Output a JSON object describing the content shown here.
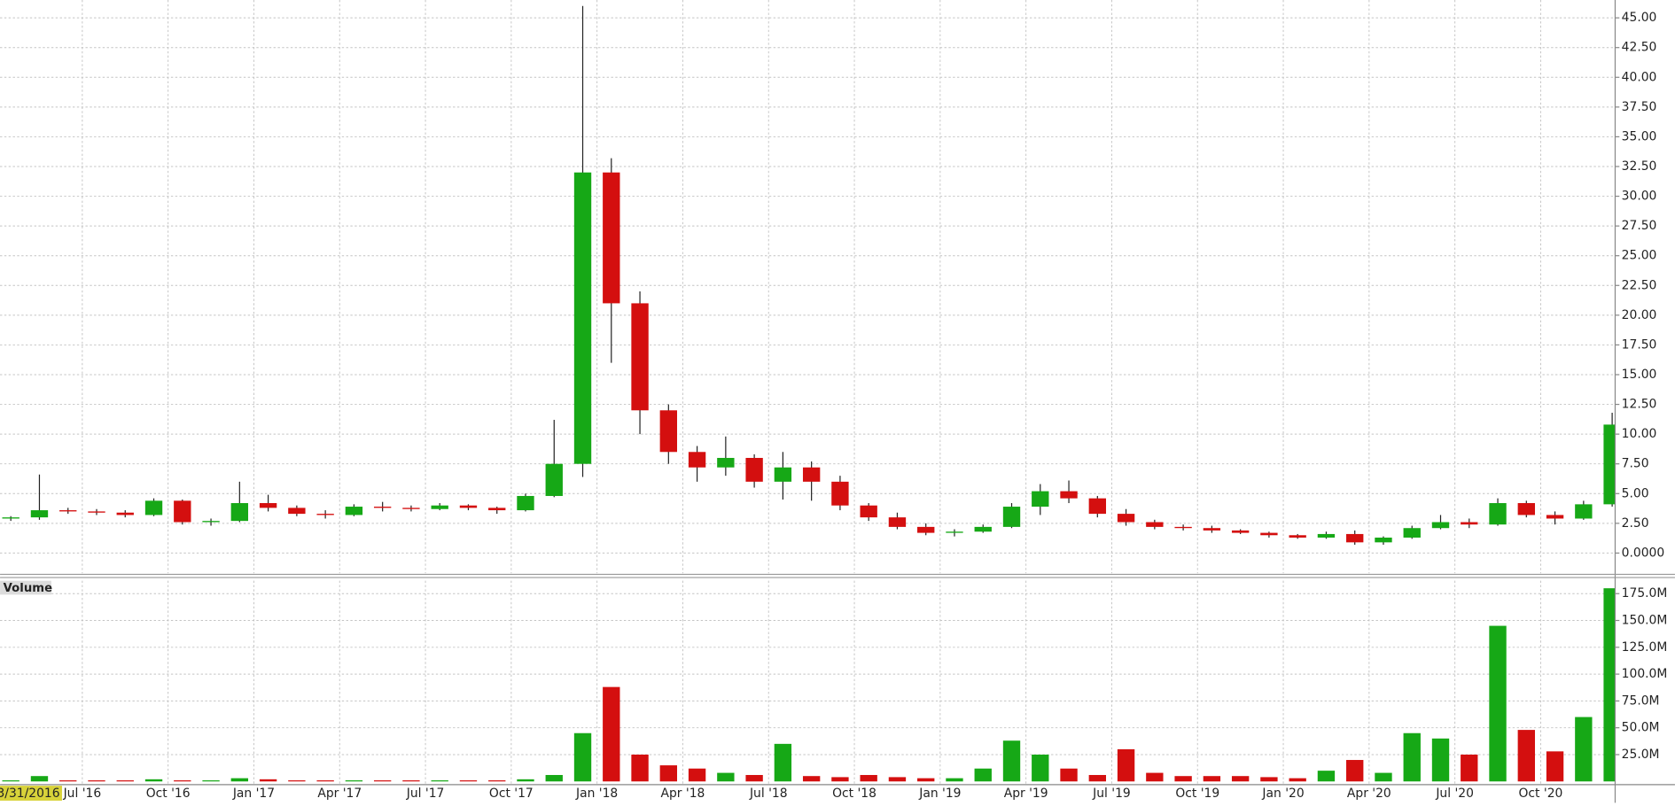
{
  "chart_data": {
    "type": "candlestick",
    "cursor_date": "3/31/2016",
    "up_color": "#16a816",
    "down_color": "#d40f0f",
    "grid": true,
    "x": [
      "2016-04",
      "2016-05",
      "2016-06",
      "2016-07",
      "2016-08",
      "2016-09",
      "2016-10",
      "2016-11",
      "2016-12",
      "2017-01",
      "2017-02",
      "2017-03",
      "2017-04",
      "2017-05",
      "2017-06",
      "2017-07",
      "2017-08",
      "2017-09",
      "2017-10",
      "2017-11",
      "2017-12",
      "2018-01",
      "2018-02",
      "2018-03",
      "2018-04",
      "2018-05",
      "2018-06",
      "2018-07",
      "2018-08",
      "2018-09",
      "2018-10",
      "2018-11",
      "2018-12",
      "2019-01",
      "2019-02",
      "2019-03",
      "2019-04",
      "2019-05",
      "2019-06",
      "2019-07",
      "2019-08",
      "2019-09",
      "2019-10",
      "2019-11",
      "2019-12",
      "2020-01",
      "2020-02",
      "2020-03",
      "2020-04",
      "2020-05",
      "2020-06",
      "2020-07",
      "2020-08",
      "2020-09",
      "2020-10",
      "2020-11",
      "2020-12"
    ],
    "open": [
      2.9,
      3.0,
      3.6,
      3.5,
      3.4,
      3.2,
      4.4,
      2.6,
      2.7,
      4.2,
      3.8,
      3.3,
      3.2,
      3.9,
      3.8,
      3.7,
      4.0,
      3.8,
      3.6,
      4.8,
      7.5,
      32.0,
      21.0,
      12.0,
      8.5,
      7.2,
      8.0,
      6.0,
      7.2,
      6.0,
      4.0,
      3.0,
      2.2,
      1.7,
      1.8,
      2.2,
      3.9,
      5.2,
      4.6,
      3.3,
      2.6,
      2.2,
      2.1,
      1.9,
      1.7,
      1.5,
      1.3,
      1.6,
      0.9,
      1.3,
      2.1,
      2.6,
      2.4,
      4.2,
      3.2,
      2.9,
      4.1
    ],
    "high": [
      3.1,
      6.6,
      3.8,
      3.7,
      3.6,
      4.6,
      4.5,
      2.9,
      6.0,
      4.9,
      4.0,
      3.6,
      4.1,
      4.3,
      4.0,
      4.2,
      4.1,
      3.9,
      5.0,
      11.2,
      46.0,
      33.2,
      22.0,
      12.5,
      9.0,
      9.8,
      8.3,
      8.5,
      7.7,
      6.5,
      4.2,
      3.4,
      2.5,
      2.0,
      2.4,
      4.2,
      5.8,
      6.1,
      4.8,
      3.7,
      2.8,
      2.4,
      2.3,
      2.0,
      1.8,
      1.6,
      1.8,
      1.9,
      1.4,
      2.3,
      3.2,
      2.9,
      4.6,
      4.4,
      3.5,
      4.4,
      11.8
    ],
    "low": [
      2.7,
      2.8,
      3.3,
      3.2,
      3.0,
      3.1,
      2.4,
      2.3,
      2.6,
      3.5,
      3.1,
      2.9,
      3.1,
      3.5,
      3.5,
      3.6,
      3.6,
      3.3,
      3.5,
      4.7,
      6.4,
      16.0,
      10.0,
      7.5,
      6.0,
      6.5,
      5.5,
      4.5,
      4.4,
      3.6,
      2.7,
      2.0,
      1.5,
      1.4,
      1.7,
      2.1,
      3.2,
      4.2,
      3.0,
      2.3,
      2.0,
      1.9,
      1.7,
      1.6,
      1.3,
      1.2,
      1.2,
      0.7,
      0.7,
      1.2,
      2.0,
      2.1,
      2.3,
      3.0,
      2.4,
      2.8,
      3.9
    ],
    "close": [
      3.0,
      3.6,
      3.5,
      3.4,
      3.2,
      4.4,
      2.6,
      2.7,
      4.2,
      3.8,
      3.3,
      3.2,
      3.9,
      3.8,
      3.7,
      4.0,
      3.8,
      3.6,
      4.8,
      7.5,
      32.0,
      21.0,
      12.0,
      8.5,
      7.2,
      8.0,
      6.0,
      7.2,
      6.0,
      4.0,
      3.0,
      2.2,
      1.7,
      1.8,
      2.2,
      3.9,
      5.2,
      4.6,
      3.3,
      2.6,
      2.2,
      2.1,
      1.9,
      1.7,
      1.5,
      1.3,
      1.6,
      0.9,
      1.3,
      2.1,
      2.6,
      2.4,
      4.2,
      3.2,
      2.9,
      4.1,
      10.8
    ],
    "xlim": [
      "2016-04",
      "2021-01"
    ],
    "xticks": [
      {
        "value": "2016-07",
        "label": "Jul '16"
      },
      {
        "value": "2016-10",
        "label": "Oct '16"
      },
      {
        "value": "2017-01",
        "label": "Jan '17"
      },
      {
        "value": "2017-04",
        "label": "Apr '17"
      },
      {
        "value": "2017-07",
        "label": "Jul '17"
      },
      {
        "value": "2017-10",
        "label": "Oct '17"
      },
      {
        "value": "2018-01",
        "label": "Jan '18"
      },
      {
        "value": "2018-04",
        "label": "Apr '18"
      },
      {
        "value": "2018-07",
        "label": "Jul '18"
      },
      {
        "value": "2018-10",
        "label": "Oct '18"
      },
      {
        "value": "2019-01",
        "label": "Jan '19"
      },
      {
        "value": "2019-04",
        "label": "Apr '19"
      },
      {
        "value": "2019-07",
        "label": "Jul '19"
      },
      {
        "value": "2019-10",
        "label": "Oct '19"
      },
      {
        "value": "2020-01",
        "label": "Jan '20"
      },
      {
        "value": "2020-04",
        "label": "Apr '20"
      },
      {
        "value": "2020-07",
        "label": "Jul '20"
      },
      {
        "value": "2020-10",
        "label": "Oct '20"
      }
    ],
    "ylim": [
      -1.7,
      46.5
    ],
    "yticks": [
      {
        "value": 0,
        "label": "0.0000"
      },
      {
        "value": 2.5,
        "label": "2.50"
      },
      {
        "value": 5,
        "label": "5.00"
      },
      {
        "value": 7.5,
        "label": "7.50"
      },
      {
        "value": 10,
        "label": "10.00"
      },
      {
        "value": 12.5,
        "label": "12.50"
      },
      {
        "value": 15,
        "label": "15.00"
      },
      {
        "value": 17.5,
        "label": "17.50"
      },
      {
        "value": 20,
        "label": "20.00"
      },
      {
        "value": 22.5,
        "label": "22.50"
      },
      {
        "value": 25,
        "label": "25.00"
      },
      {
        "value": 27.5,
        "label": "27.50"
      },
      {
        "value": 30,
        "label": "30.00"
      },
      {
        "value": 32.5,
        "label": "32.50"
      },
      {
        "value": 35,
        "label": "35.00"
      },
      {
        "value": 37.5,
        "label": "37.50"
      },
      {
        "value": 40,
        "label": "40.00"
      },
      {
        "value": 42.5,
        "label": "42.50"
      },
      {
        "value": 45,
        "label": "45.00"
      }
    ],
    "volume": {
      "title": "Volume",
      "values": [
        1,
        5,
        1,
        1,
        1,
        2,
        1,
        1,
        3,
        2,
        1,
        1,
        1,
        1,
        1,
        1,
        1,
        1,
        2,
        6,
        45,
        88,
        25,
        15,
        12,
        8,
        6,
        35,
        5,
        4,
        6,
        4,
        3,
        3,
        12,
        38,
        25,
        12,
        6,
        30,
        8,
        5,
        5,
        5,
        4,
        3,
        10,
        20,
        8,
        45,
        40,
        25,
        145,
        48,
        28,
        60,
        180
      ],
      "ylim": [
        -3,
        187
      ],
      "yticks": [
        {
          "value": 25,
          "label": "25.0M"
        },
        {
          "value": 50,
          "label": "50.0M"
        },
        {
          "value": 75,
          "label": "75.0M"
        },
        {
          "value": 100,
          "label": "100.0M"
        },
        {
          "value": 125,
          "label": "125.0M"
        },
        {
          "value": 150,
          "label": "150.0M"
        },
        {
          "value": 175,
          "label": "175.0M"
        }
      ]
    }
  }
}
